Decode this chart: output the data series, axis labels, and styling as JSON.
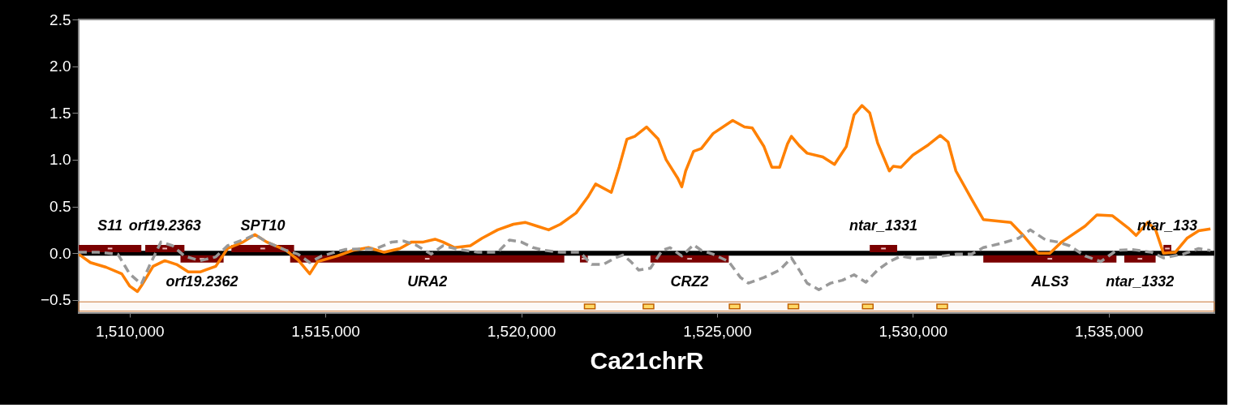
{
  "chart_data": {
    "type": "line",
    "xlabel": "Ca21chrR",
    "xlim": [
      1508700,
      1537700
    ],
    "ylim": [
      -0.64,
      2.5
    ],
    "xticks": [
      {
        "value": 1510000,
        "label": "1,510,000"
      },
      {
        "value": 1515000,
        "label": "1,515,000"
      },
      {
        "value": 1520000,
        "label": "1,520,000"
      },
      {
        "value": 1525000,
        "label": "1,525,000"
      },
      {
        "value": 1530000,
        "label": "1,530,000"
      },
      {
        "value": 1535000,
        "label": "1,535,000"
      }
    ],
    "yticks": [
      -0.5,
      {
        "value": 0,
        "label": "0.0"
      },
      0.5,
      {
        "value": 1,
        "label": "1.0"
      },
      1.5,
      {
        "value": 2,
        "label": "2.0"
      },
      2.5
    ],
    "grid": false,
    "series": [
      {
        "color": "#ff8000",
        "line_style": "solid",
        "x": [
          1508700,
          1509000,
          1509400,
          1509800,
          1510000,
          1510200,
          1510300,
          1510600,
          1510900,
          1511200,
          1511500,
          1511800,
          1512200,
          1512500,
          1512900,
          1513200,
          1513500,
          1514000,
          1514300,
          1514600,
          1514800,
          1515300,
          1515700,
          1516100,
          1516500,
          1516900,
          1517200,
          1517500,
          1517800,
          1518000,
          1518300,
          1518700,
          1519000,
          1519400,
          1519800,
          1520100,
          1520400,
          1520700,
          1521000,
          1521400,
          1521700,
          1521900,
          1522300,
          1522500,
          1522700,
          1522900,
          1523200,
          1523500,
          1523700,
          1524000,
          1524100,
          1524200,
          1524400,
          1524600,
          1524900,
          1525400,
          1525700,
          1525900,
          1526200,
          1526400,
          1526600,
          1526800,
          1526900,
          1527100,
          1527300,
          1527700,
          1528000,
          1528300,
          1528500,
          1528700,
          1528900,
          1529100,
          1529400,
          1529500,
          1529700,
          1530000,
          1530400,
          1530700,
          1530900,
          1531100,
          1531500,
          1531800,
          1532500,
          1532800,
          1533200,
          1533500,
          1533800,
          1534400,
          1534700,
          1535100,
          1535500,
          1535700,
          1536000,
          1536200,
          1536400,
          1536700,
          1537000,
          1537300,
          1537600
        ],
        "values": [
          -0.01,
          -0.1,
          -0.15,
          -0.22,
          -0.35,
          -0.41,
          -0.35,
          -0.14,
          -0.08,
          -0.12,
          -0.2,
          -0.2,
          -0.14,
          0.05,
          0.12,
          0.2,
          0.12,
          0.03,
          -0.07,
          -0.22,
          -0.09,
          -0.03,
          0.03,
          0.06,
          0.01,
          0.05,
          0.12,
          0.12,
          0.15,
          0.12,
          0.06,
          0.08,
          0.16,
          0.25,
          0.31,
          0.33,
          0.29,
          0.25,
          0.31,
          0.43,
          0.6,
          0.74,
          0.65,
          0.92,
          1.22,
          1.25,
          1.35,
          1.22,
          1.0,
          0.8,
          0.71,
          0.88,
          1.09,
          1.12,
          1.28,
          1.42,
          1.35,
          1.34,
          1.14,
          0.92,
          0.92,
          1.17,
          1.25,
          1.15,
          1.07,
          1.03,
          0.95,
          1.14,
          1.48,
          1.58,
          1.5,
          1.18,
          0.88,
          0.93,
          0.92,
          1.05,
          1.16,
          1.26,
          1.19,
          0.88,
          0.58,
          0.36,
          0.33,
          0.2,
          0.0,
          0.0,
          0.12,
          0.29,
          0.41,
          0.4,
          0.27,
          0.19,
          0.33,
          0.25,
          0.0,
          0.01,
          0.16,
          0.24,
          0.26
        ]
      },
      {
        "type": "scatter",
        "marker": "square",
        "color": "#7a0000",
        "x": [
          1509500,
          1510900,
          1511850,
          1513400,
          1517600,
          1521600,
          1524300,
          1529250,
          1533500,
          1535800,
          1536500
        ],
        "values": [
          0.05,
          0.05,
          -0.06,
          0.05,
          -0.06,
          -0.06,
          -0.06,
          0.05,
          -0.06,
          -0.06,
          0.05
        ],
        "xerrors": [
          [
            1508700,
            1510300
          ],
          [
            1510400,
            1511400
          ],
          [
            1511300,
            1512400
          ],
          [
            1512600,
            1514200
          ],
          [
            1514100,
            1521100
          ],
          [
            1521500,
            1521700
          ],
          [
            1523300,
            1525300
          ],
          [
            1528900,
            1529600
          ],
          [
            1531800,
            1535200
          ],
          [
            1535400,
            1536200
          ],
          [
            1536400,
            1536600
          ]
        ]
      },
      {
        "type": "scatter",
        "marker": "square",
        "color": "#ffd966",
        "x": [
          1521750,
          1523250,
          1525450,
          1526950,
          1528850,
          1530750
        ],
        "values": [
          -0.57,
          -0.57,
          -0.57,
          -0.57,
          -0.57,
          -0.57
        ]
      },
      {
        "color": "#999999",
        "line_style": "dashed",
        "x": [
          1508700,
          1509200,
          1509700,
          1510000,
          1510300,
          1510500,
          1510800,
          1511100,
          1511400,
          1511800,
          1512200,
          1512500,
          1513000,
          1513200,
          1513500,
          1514000,
          1514300,
          1514600,
          1514900,
          1515500,
          1516300,
          1516700,
          1517000,
          1517300,
          1517700,
          1518000,
          1518400,
          1518900,
          1519400,
          1519700,
          1520000,
          1520300,
          1520600,
          1521000,
          1521500,
          1521800,
          1522100,
          1522400,
          1522600,
          1522800,
          1523000,
          1523300,
          1523600,
          1523800,
          1524100,
          1524400,
          1524600,
          1524900,
          1525300,
          1525600,
          1525800,
          1526200,
          1526600,
          1526900,
          1527100,
          1527300,
          1527600,
          1527900,
          1528200,
          1528500,
          1528800,
          1529100,
          1529400,
          1529700,
          1530100,
          1530600,
          1531100,
          1531500,
          1531800,
          1532300,
          1532700,
          1533000,
          1533400,
          1533700,
          1534000,
          1534400,
          1534800,
          1535200,
          1535600,
          1536100,
          1536400,
          1536900,
          1537300,
          1537600
        ],
        "values": [
          0.01,
          0.01,
          -0.01,
          -0.22,
          -0.33,
          -0.14,
          0.12,
          0.08,
          -0.03,
          -0.08,
          -0.04,
          0.08,
          0.16,
          0.2,
          0.12,
          0.03,
          -0.01,
          -0.1,
          -0.03,
          0.04,
          0.05,
          0.12,
          0.13,
          0.09,
          -0.01,
          0.08,
          0.04,
          0.01,
          0.01,
          0.14,
          0.12,
          0.06,
          0.03,
          0.01,
          0.01,
          -0.12,
          -0.12,
          -0.05,
          -0.02,
          -0.09,
          -0.18,
          -0.16,
          0.03,
          0.06,
          -0.03,
          0.09,
          0.03,
          -0.01,
          -0.09,
          -0.26,
          -0.32,
          -0.26,
          -0.18,
          -0.05,
          -0.18,
          -0.32,
          -0.39,
          -0.32,
          -0.29,
          -0.23,
          -0.31,
          -0.18,
          -0.09,
          -0.03,
          -0.06,
          -0.04,
          -0.01,
          -0.01,
          0.06,
          0.11,
          0.16,
          0.25,
          0.14,
          0.12,
          0.08,
          -0.03,
          -0.09,
          0.03,
          0.04,
          0.01,
          -0.05,
          -0.01,
          0.05,
          0.03
        ]
      }
    ],
    "ref_lines": [
      {
        "axis": "y",
        "value": 0,
        "color": "#000000"
      }
    ],
    "bands": [
      {
        "axis": "y",
        "from": -0.62,
        "to": -0.52,
        "color": "#c87533"
      }
    ],
    "annotations": [
      {
        "text": "S11",
        "x": 1509500,
        "y": 0.05
      },
      {
        "text": "orf19.2363",
        "x": 1510900,
        "y": 0.05
      },
      {
        "text": "orf19.2362",
        "x": 1511850,
        "y": -0.06
      },
      {
        "text": "SPT10",
        "x": 1513400,
        "y": 0.05
      },
      {
        "text": "URA2",
        "x": 1517600,
        "y": -0.06
      },
      {
        "text": "CRZ2",
        "x": 1524300,
        "y": -0.06
      },
      {
        "text": "ntar_1331",
        "x": 1529250,
        "y": 0.05
      },
      {
        "text": "ALS3",
        "x": 1533500,
        "y": -0.06
      },
      {
        "text": "ntar_1332",
        "x": 1535800,
        "y": -0.06
      },
      {
        "text": "ntar_133",
        "x": 1536500,
        "y": 0.05
      }
    ]
  }
}
